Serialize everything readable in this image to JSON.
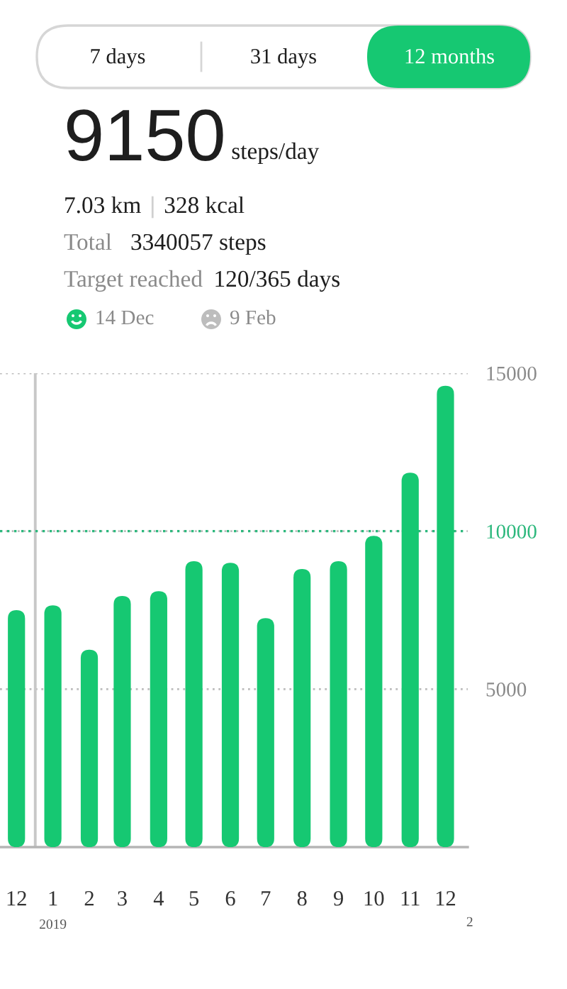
{
  "chart_data": {
    "type": "bar",
    "title": "9150",
    "subtitle": "steps/day",
    "annotations": [
      "7 days",
      "31 days",
      "12 months",
      "7.03 km",
      "328 kcal",
      "Total",
      "3340057 steps",
      "Target reached",
      "120/365 days",
      "14 Dec",
      "9 Feb",
      "2019",
      "2"
    ],
    "x": [
      "2018-12-16",
      "2019-01-16",
      "2019-02-16",
      "2019-03-16",
      "2019-04-16",
      "2019-05-16",
      "2019-06-16",
      "2019-07-16",
      "2019-08-16",
      "2019-09-16",
      "2019-10-16",
      "2019-11-16",
      "2019-12-16"
    ],
    "values": [
      7500,
      7650,
      6250,
      7950,
      8100,
      9050,
      9000,
      7250,
      8800,
      9050,
      9850,
      11850,
      14600
    ],
    "color": "#16c872",
    "xlim": [
      "2018-12-02",
      "2020-01-04"
    ],
    "xticks": [
      {
        "value": "2018-12-16",
        "label": "12"
      },
      {
        "value": "2019-01-16",
        "label": "1"
      },
      {
        "value": "2019-02-16",
        "label": "2"
      },
      {
        "value": "2019-03-16",
        "label": "3"
      },
      {
        "value": "2019-04-16",
        "label": "4"
      },
      {
        "value": "2019-05-16",
        "label": "5"
      },
      {
        "value": "2019-06-16",
        "label": "6"
      },
      {
        "value": "2019-07-16",
        "label": "7"
      },
      {
        "value": "2019-08-16",
        "label": "8"
      },
      {
        "value": "2019-09-16",
        "label": "9"
      },
      {
        "value": "2019-10-16",
        "label": "10"
      },
      {
        "value": "2019-11-16",
        "label": "11"
      },
      {
        "value": "2019-12-16",
        "label": "12"
      }
    ],
    "ylim": [
      0,
      15000
    ],
    "yticks": [
      5000,
      10000,
      15000
    ],
    "grid": "y",
    "ref_lines": [
      {
        "axis": "x",
        "value": "2019-01-01",
        "color": "#c8c8c8",
        "line_style": "solid"
      },
      {
        "axis": "y",
        "value": 10000,
        "color": "#2db87d",
        "line_style": "dotted"
      }
    ]
  }
}
